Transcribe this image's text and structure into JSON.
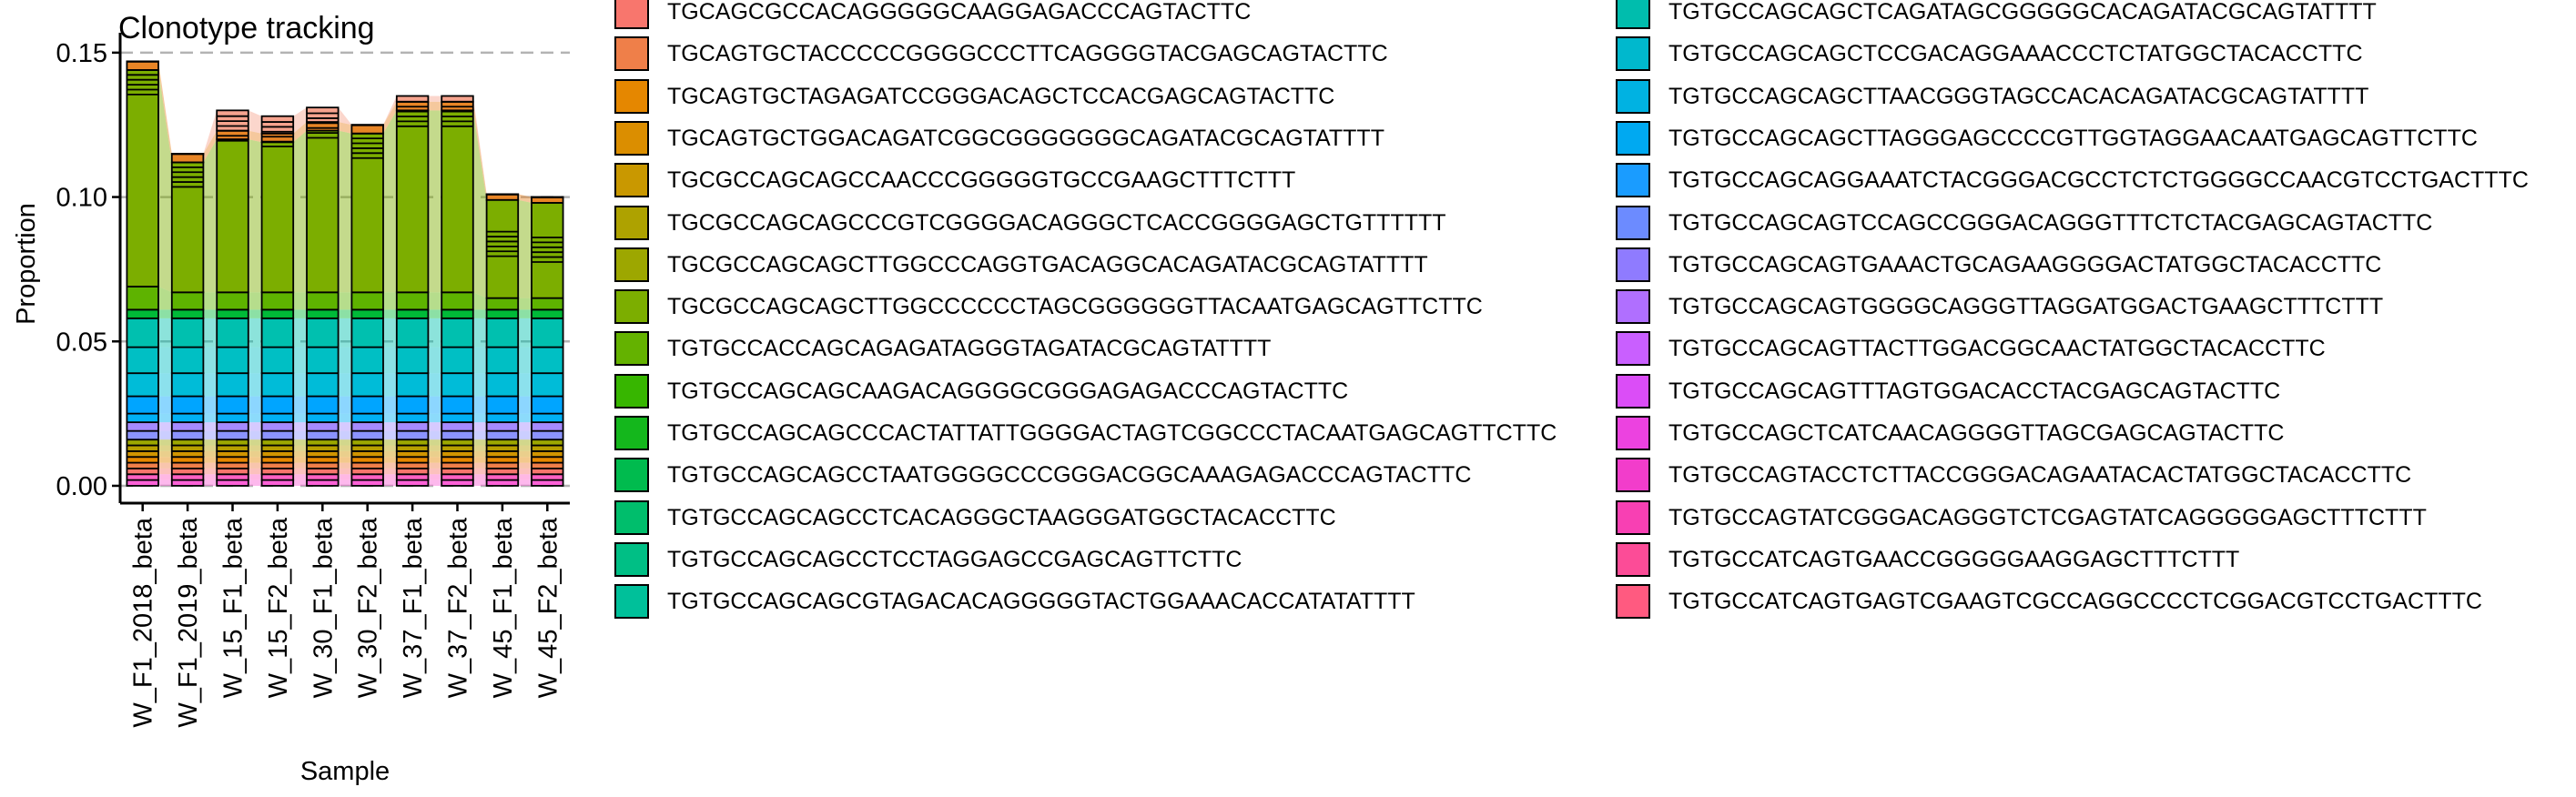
{
  "chart_data": {
    "type": "bar",
    "title": "Clonotype tracking",
    "xlabel": "Sample",
    "ylabel": "Proportion",
    "ylim": [
      -0.006,
      0.155
    ],
    "yticks": [
      0.0,
      0.05,
      0.1,
      0.15
    ],
    "ytick_labels": [
      "0.00",
      "0.05",
      "0.10",
      "0.15"
    ],
    "grid": "horizontal dashed at y ticks",
    "legend_position": "right",
    "categories": [
      "W_F1_2018_beta",
      "W_F1_2019_beta",
      "W_15_F1_beta",
      "W_15_F2_beta",
      "W_30_F1_beta",
      "W_30_F2_beta",
      "W_37_F1_beta",
      "W_37_F2_beta",
      "W_45_F1_beta",
      "W_45_F2_beta"
    ],
    "totals": [
      0.146,
      0.114,
      0.13,
      0.128,
      0.131,
      0.124,
      0.135,
      0.135,
      0.09,
      0.088
    ],
    "series": [
      {
        "name": "TGTGCCATCAGTGAGTCGAAGTCGCCAGGCCCCTCGGACGTCCTGACTTTC",
        "color": "#FB61D7",
        "values": [
          0.002,
          0.002,
          0.002,
          0.002,
          0.002,
          0.002,
          0.002,
          0.002,
          0.002,
          0.002
        ]
      },
      {
        "name": "TGTGCCATCAGTGAACCGGGGGAAGGAGCTTTCTTT",
        "color": "#FF61C3",
        "values": [
          0.002,
          0.002,
          0.002,
          0.002,
          0.002,
          0.002,
          0.002,
          0.002,
          0.002,
          0.002
        ]
      },
      {
        "name": "TGTGCCAGTATCGGGACAGGGTCTCGAGTATCAGGGGGAGCTTTCTTT",
        "color": "#F8766D",
        "values": [
          0.002,
          0.002,
          0.002,
          0.002,
          0.002,
          0.002,
          0.002,
          0.002,
          0.002,
          0.002
        ]
      },
      {
        "name": "TGTGCCAGTACCTCTTACCGGGACAGAATACACTATGGCTACACCTTC",
        "color": "#EF7F49",
        "values": [
          0.002,
          0.002,
          0.002,
          0.002,
          0.002,
          0.002,
          0.002,
          0.002,
          0.002,
          0.002
        ]
      },
      {
        "name": "TGTGCCAGCTCATCAACAGGGGTTAGCGAGCAGTACTTC",
        "color": "#E58700",
        "values": [
          0.002,
          0.002,
          0.002,
          0.002,
          0.002,
          0.002,
          0.002,
          0.002,
          0.002,
          0.002
        ]
      },
      {
        "name": "TGTGCCAGCAGTTTAGTGGACACCTACGAGCAGTACTTC",
        "color": "#D09400",
        "values": [
          0.002,
          0.002,
          0.002,
          0.002,
          0.002,
          0.002,
          0.002,
          0.002,
          0.002,
          0.002
        ]
      },
      {
        "name": "TGTGCCAGCAGTTACTTGGACGGCAACTATGGCTACACCTTC",
        "color": "#B79F00",
        "values": [
          0.002,
          0.002,
          0.002,
          0.002,
          0.002,
          0.002,
          0.002,
          0.002,
          0.002,
          0.002
        ]
      },
      {
        "name": "TGTGCCAGCAGTGGGGCAGGGTTAGGATGGACTGAAGCTTTCTTT",
        "color": "#9CA700",
        "values": [
          0.002,
          0.002,
          0.002,
          0.002,
          0.002,
          0.002,
          0.002,
          0.002,
          0.002,
          0.002
        ]
      },
      {
        "name": "TGTGCCAGCAGTGAAACTGCAGAAGGGGACTATGGCTACACCTTC",
        "color": "#8B93FF",
        "values": [
          0.003,
          0.003,
          0.003,
          0.003,
          0.003,
          0.003,
          0.003,
          0.003,
          0.003,
          0.003
        ]
      },
      {
        "name": "TGTGCCAGCAGTCCAGCCGGGACAGGGTTTCTCTACGAGCAGTACTTC",
        "color": "#A58AFF",
        "values": [
          0.003,
          0.003,
          0.003,
          0.003,
          0.003,
          0.003,
          0.003,
          0.003,
          0.003,
          0.003
        ]
      },
      {
        "name": "TGTGCCAGCAGGAAATCTACGGGACGCCTCTCTGGGGCCAACGTCCTGACTTTC",
        "color": "#00B0F6",
        "values": [
          0.003,
          0.003,
          0.003,
          0.003,
          0.003,
          0.003,
          0.003,
          0.003,
          0.003,
          0.003
        ]
      },
      {
        "name": "TGTGCCAGCAGCTTAGGGAGCCCCGTTGGTAGGAACAATGAGCAGTTCTTC",
        "color": "#00A5FF",
        "values": [
          0.006,
          0.006,
          0.006,
          0.006,
          0.006,
          0.006,
          0.006,
          0.006,
          0.006,
          0.006
        ]
      },
      {
        "name": "TGTGCCAGCAGCTTAACGGGTAGCCACACAGATACGCAGTATTTT",
        "color": "#00BCD8",
        "values": [
          0.008,
          0.008,
          0.008,
          0.008,
          0.008,
          0.008,
          0.008,
          0.008,
          0.008,
          0.008
        ]
      },
      {
        "name": "TGTGCCAGCAGCTCCGACAGGAAACCCTCTATGGCTACACCTTC",
        "color": "#00BFC4",
        "values": [
          0.009,
          0.009,
          0.009,
          0.009,
          0.009,
          0.009,
          0.009,
          0.009,
          0.009,
          0.009
        ]
      },
      {
        "name": "TGTGCCAGCAGCTCAGATAGCGGGGGCACAGATACGCAGTATTTT",
        "color": "#00C0AF",
        "values": [
          0.01,
          0.01,
          0.01,
          0.01,
          0.01,
          0.01,
          0.01,
          0.01,
          0.01,
          0.01
        ]
      },
      {
        "name": "TGTGCCAGCAGCGTAGACACAGGGGGTACTGGAAACACCATATATTTT",
        "color": "#00BA38",
        "values": [
          0.003,
          0.003,
          0.003,
          0.003,
          0.003,
          0.003,
          0.003,
          0.003,
          0.003,
          0.003
        ]
      },
      {
        "name": "TGTGCCAGCAGCAAGACAGGGGCGGGAGAGACCCAGTACTTC",
        "color": "#5EB300",
        "values": [
          0.008,
          0.006,
          0.006,
          0.006,
          0.006,
          0.006,
          0.006,
          0.006,
          0.004,
          0.004
        ]
      },
      {
        "name": "TGTGCCACCAGCAGAGATAGGGTAGATACGCAGTATTTT",
        "color": "#7CAE00",
        "values": [
          0.075,
          0.045,
          0.053,
          0.052,
          0.056,
          0.055,
          0.063,
          0.063,
          0.034,
          0.033
        ]
      },
      {
        "name": "TGCGCCAGCAGCTTGGCCCCCCTAGCGGGGGGTTACAATGAGCAGTTCTTC",
        "color": "#E88526",
        "values": [
          0.003,
          0.003,
          0.003,
          0.003,
          0.003,
          0.003,
          0.003,
          0.003,
          0.002,
          0.002
        ]
      }
    ],
    "legend": {
      "left_column": [
        "TGCAGCGCCACAGGGGGCAAGGAGACCCAGTACTTC",
        "TGCAGTGCTACCCCCGGGGCCCTTCAGGGGTACGAGCAGTACTTC",
        "TGCAGTGCTAGAGATCCGGGACAGCTCCACGAGCAGTACTTC",
        "TGCAGTGCTGGACAGATCGGCGGGGGGGCAGATACGCAGTATTTT",
        "TGCGCCAGCAGCCAACCCGGGGGTGCCGAAGCTTTCTTT",
        "TGCGCCAGCAGCCCGTCGGGGACAGGGCTCACCGGGGAGCTGTTTTTT",
        "TGCGCCAGCAGCTTGGCCCAGGTGACAGGCACAGATACGCAGTATTTT",
        "TGCGCCAGCAGCTTGGCCCCCCTAGCGGGGGGTTACAATGAGCAGTTCTTC",
        "TGTGCCACCAGCAGAGATAGGGTAGATACGCAGTATTTT",
        "TGTGCCAGCAGCAAGACAGGGGCGGGAGAGACCCAGTACTTC",
        "TGTGCCAGCAGCCCACTATTATTGGGGACTAGTCGGCCCTACAATGAGCAGTTCTTC",
        "TGTGCCAGCAGCCTAATGGGGCCCGGGACGGCAAAGAGACCCAGTACTTC",
        "TGTGCCAGCAGCCTCACAGGGCTAAGGGATGGCTACACCTTC",
        "TGTGCCAGCAGCCTCCTAGGAGCCGAGCAGTTCTTC",
        "TGTGCCAGCAGCGTAGACACAGGGGGTACTGGAAACACCATATATTTT"
      ],
      "left_colors": [
        "#F8766D",
        "#EF7F49",
        "#E58700",
        "#DB8E00",
        "#C99800",
        "#AEA200",
        "#9DA700",
        "#7CAE00",
        "#64B200",
        "#37B600",
        "#14B71C",
        "#00BB4E",
        "#00BE6C",
        "#00BF85",
        "#00C09A"
      ],
      "right_column": [
        "TGTGCCAGCAGCTCAGATAGCGGGGGCACAGATACGCAGTATTTT",
        "TGTGCCAGCAGCTCCGACAGGAAACCCTCTATGGCTACACCTTC",
        "TGTGCCAGCAGCTTAACGGGTAGCCACACAGATACGCAGTATTTT",
        "TGTGCCAGCAGCTTAGGGAGCCCCGTTGGTAGGAACAATGAGCAGTTCTTC",
        "TGTGCCAGCAGGAAATCTACGGGACGCCTCTCTGGGGCCAACGTCCTGACTTTC",
        "TGTGCCAGCAGTCCAGCCGGGACAGGGTTTCTCTACGAGCAGTACTTC",
        "TGTGCCAGCAGTGAAACTGCAGAAGGGGACTATGGCTACACCTTC",
        "TGTGCCAGCAGTGGGGCAGGGTTAGGATGGACTGAAGCTTTCTTT",
        "TGTGCCAGCAGTTACTTGGACGGCAACTATGGCTACACCTTC",
        "TGTGCCAGCAGTTTAGTGGACACCTACGAGCAGTACTTC",
        "TGTGCCAGCTCATCAACAGGGGTTAGCGAGCAGTACTTC",
        "TGTGCCAGTACCTCTTACCGGGACAGAATACACTATGGCTACACCTTC",
        "TGTGCCAGTATCGGGACAGGGTCTCGAGTATCAGGGGGAGCTTTCTTT",
        "TGTGCCATCAGTGAACCGGGGGAAGGAGCTTTCTTT",
        "TGTGCCATCAGTGAGTCGAAGTCGCCAGGCCCCTCGGACGTCCTGACTTTC"
      ],
      "right_colors": [
        "#00BDAD",
        "#00B8CD",
        "#00B2E2",
        "#00A9F1",
        "#1A9CFF",
        "#6C8BFF",
        "#8F7BFF",
        "#B06FFF",
        "#C95FFF",
        "#DB4DF7",
        "#EC42E0",
        "#F23DCB",
        "#F840B3",
        "#FC4C97",
        "#FF5A80"
      ]
    }
  }
}
